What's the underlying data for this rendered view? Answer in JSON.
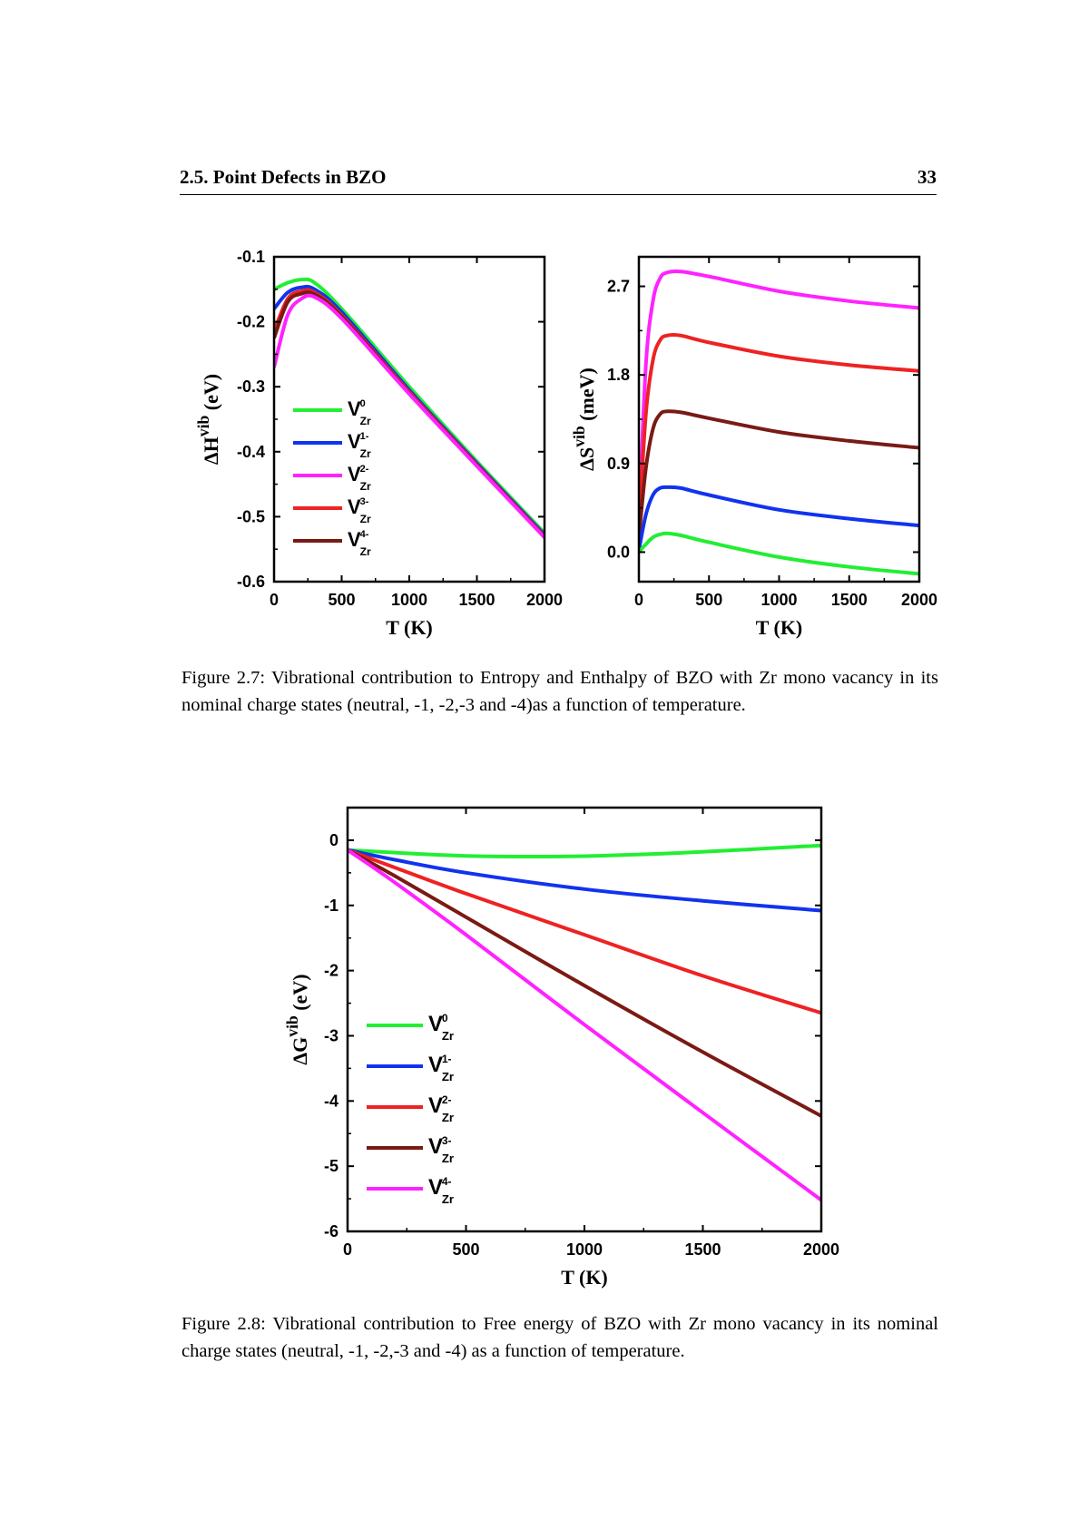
{
  "header": {
    "section": "2.5. Point Defects in BZO",
    "page_number": "33"
  },
  "colors": {
    "green": "#22ee33",
    "blue": "#1133ee",
    "magenta": "#ff22ff",
    "red": "#ee2222",
    "brown": "#7a1a14"
  },
  "captions": {
    "fig27": "Figure 2.7: Vibrational contribution to Entropy and Enthalpy of BZO with Zr mono vacancy in its nominal charge states (neutral, -1, -2,-3 and -4)as a function of temperature.",
    "fig28": "Figure 2.8: Vibrational contribution to Free energy of BZO with Zr mono vacancy in its nominal charge states (neutral, -1, -2,-3 and -4) as a function of temperature."
  },
  "chart_data": [
    {
      "id": "dH",
      "type": "line",
      "xlabel": "T (K)",
      "ylabel": {
        "main": "ΔH",
        "sup": "vib",
        "unit": " (eV)"
      },
      "xlim": [
        0,
        2000
      ],
      "ylim": [
        -0.6,
        -0.1
      ],
      "xticks": [
        "0",
        "500",
        "1000",
        "1500",
        "2000"
      ],
      "yticks": [
        "-0.1",
        "-0.2",
        "-0.3",
        "-0.4",
        "-0.5",
        "-0.6"
      ],
      "xtick_values": [
        0,
        500,
        1000,
        1500,
        2000
      ],
      "ytick_values": [
        -0.1,
        -0.2,
        -0.3,
        -0.4,
        -0.5,
        -0.6
      ],
      "legend": [
        {
          "base": "V",
          "sub": "Zr",
          "sup": "0",
          "color": "#22ee33"
        },
        {
          "base": "V",
          "sub": "Zr",
          "sup": "1-",
          "color": "#1133ee"
        },
        {
          "base": "V",
          "sub": "Zr",
          "sup": "2-",
          "color": "#ff22ff"
        },
        {
          "base": "V",
          "sub": "Zr",
          "sup": "3-",
          "color": "#ee2222"
        },
        {
          "base": "V",
          "sub": "Zr",
          "sup": "4-",
          "color": "#7a1a14"
        }
      ],
      "legend_position": "lower-left",
      "series": [
        {
          "color": "#22ee33",
          "x": [
            0,
            100,
            200,
            300,
            500,
            1000,
            1500,
            2000
          ],
          "y": [
            -0.15,
            -0.14,
            -0.135,
            -0.14,
            -0.18,
            -0.3,
            -0.415,
            -0.525
          ]
        },
        {
          "color": "#1133ee",
          "x": [
            0,
            100,
            200,
            300,
            500,
            1000,
            1500,
            2000
          ],
          "y": [
            -0.18,
            -0.155,
            -0.147,
            -0.15,
            -0.185,
            -0.305,
            -0.418,
            -0.528
          ]
        },
        {
          "color": "#ee2222",
          "x": [
            0,
            100,
            200,
            300,
            500,
            1000,
            1500,
            2000
          ],
          "y": [
            -0.215,
            -0.165,
            -0.153,
            -0.155,
            -0.19,
            -0.308,
            -0.42,
            -0.53
          ]
        },
        {
          "color": "#7a1a14",
          "x": [
            0,
            100,
            200,
            300,
            500,
            1000,
            1500,
            2000
          ],
          "y": [
            -0.225,
            -0.17,
            -0.157,
            -0.158,
            -0.192,
            -0.31,
            -0.421,
            -0.531
          ]
        },
        {
          "color": "#ff22ff",
          "x": [
            0,
            100,
            200,
            300,
            500,
            1000,
            1500,
            2000
          ],
          "y": [
            -0.27,
            -0.19,
            -0.165,
            -0.162,
            -0.195,
            -0.311,
            -0.422,
            -0.532
          ]
        }
      ]
    },
    {
      "id": "dS",
      "type": "line",
      "xlabel": "T (K)",
      "ylabel": {
        "main": "ΔS",
        "sup": "vib",
        "unit": " (meV)"
      },
      "xlim": [
        0,
        2000
      ],
      "ylim": [
        -0.3,
        3.0
      ],
      "xticks": [
        "0",
        "500",
        "1000",
        "1500",
        "2000"
      ],
      "yticks": [
        "2.7",
        "1.8",
        "0.9",
        "0.0"
      ],
      "xtick_values": [
        0,
        500,
        1000,
        1500,
        2000
      ],
      "ytick_values": [
        2.7,
        1.8,
        0.9,
        0.0
      ],
      "series": [
        {
          "color": "#ff22ff",
          "x": [
            0,
            50,
            100,
            150,
            200,
            300,
            500,
            1000,
            1500,
            2000
          ],
          "y": [
            0.3,
            1.9,
            2.55,
            2.78,
            2.84,
            2.85,
            2.8,
            2.65,
            2.55,
            2.48
          ]
        },
        {
          "color": "#ee2222",
          "x": [
            0,
            50,
            100,
            150,
            200,
            300,
            500,
            1000,
            1500,
            2000
          ],
          "y": [
            0.25,
            1.4,
            1.95,
            2.15,
            2.2,
            2.2,
            2.13,
            1.99,
            1.9,
            1.84
          ]
        },
        {
          "color": "#7a1a14",
          "x": [
            0,
            50,
            100,
            150,
            200,
            300,
            500,
            1000,
            1500,
            2000
          ],
          "y": [
            0.15,
            0.85,
            1.25,
            1.4,
            1.43,
            1.42,
            1.36,
            1.22,
            1.13,
            1.06
          ]
        },
        {
          "color": "#1133ee",
          "x": [
            0,
            50,
            100,
            150,
            200,
            300,
            500,
            1000,
            1500,
            2000
          ],
          "y": [
            0.02,
            0.38,
            0.58,
            0.65,
            0.66,
            0.65,
            0.58,
            0.43,
            0.34,
            0.27
          ]
        },
        {
          "color": "#22ee33",
          "x": [
            0,
            50,
            100,
            150,
            200,
            300,
            500,
            1000,
            1500,
            2000
          ],
          "y": [
            0.0,
            0.08,
            0.15,
            0.18,
            0.19,
            0.17,
            0.1,
            -0.05,
            -0.15,
            -0.22
          ]
        }
      ]
    },
    {
      "id": "dG",
      "type": "line",
      "xlabel": "T (K)",
      "ylabel": {
        "main": "ΔG",
        "sup": "vib",
        "unit": " (eV)"
      },
      "xlim": [
        0,
        2000
      ],
      "ylim": [
        -6,
        0.5
      ],
      "xticks": [
        "0",
        "500",
        "1000",
        "1500",
        "2000"
      ],
      "yticks": [
        "0",
        "-1",
        "-2",
        "-3",
        "-4",
        "-5",
        "-6"
      ],
      "xtick_values": [
        0,
        500,
        1000,
        1500,
        2000
      ],
      "ytick_values": [
        0,
        -1,
        -2,
        -3,
        -4,
        -5,
        -6
      ],
      "legend": [
        {
          "base": "V",
          "sub": "Zr",
          "sup": "0",
          "color": "#22ee33"
        },
        {
          "base": "V",
          "sub": "Zr",
          "sup": "1-",
          "color": "#1133ee"
        },
        {
          "base": "V",
          "sub": "Zr",
          "sup": "2-",
          "color": "#ee2222"
        },
        {
          "base": "V",
          "sub": "Zr",
          "sup": "3-",
          "color": "#7a1a14"
        },
        {
          "base": "V",
          "sub": "Zr",
          "sup": "4-",
          "color": "#ff22ff"
        }
      ],
      "legend_position": "lower-left",
      "series": [
        {
          "color": "#22ee33",
          "x": [
            0,
            200,
            500,
            900,
            1300,
            1700,
            2000
          ],
          "y": [
            -0.15,
            -0.19,
            -0.24,
            -0.25,
            -0.21,
            -0.14,
            -0.08
          ]
        },
        {
          "color": "#1133ee",
          "x": [
            0,
            200,
            500,
            1000,
            1500,
            2000
          ],
          "y": [
            -0.15,
            -0.3,
            -0.5,
            -0.75,
            -0.93,
            -1.08
          ]
        },
        {
          "color": "#ee2222",
          "x": [
            0,
            200,
            500,
            1000,
            1500,
            2000
          ],
          "y": [
            -0.15,
            -0.42,
            -0.82,
            -1.45,
            -2.08,
            -2.65
          ]
        },
        {
          "color": "#7a1a14",
          "x": [
            0,
            200,
            500,
            1000,
            1500,
            2000
          ],
          "y": [
            -0.15,
            -0.55,
            -1.18,
            -2.23,
            -3.25,
            -4.23
          ]
        },
        {
          "color": "#ff22ff",
          "x": [
            0,
            200,
            500,
            1000,
            1500,
            2000
          ],
          "y": [
            -0.15,
            -0.65,
            -1.45,
            -2.83,
            -4.18,
            -5.52
          ]
        }
      ]
    }
  ]
}
